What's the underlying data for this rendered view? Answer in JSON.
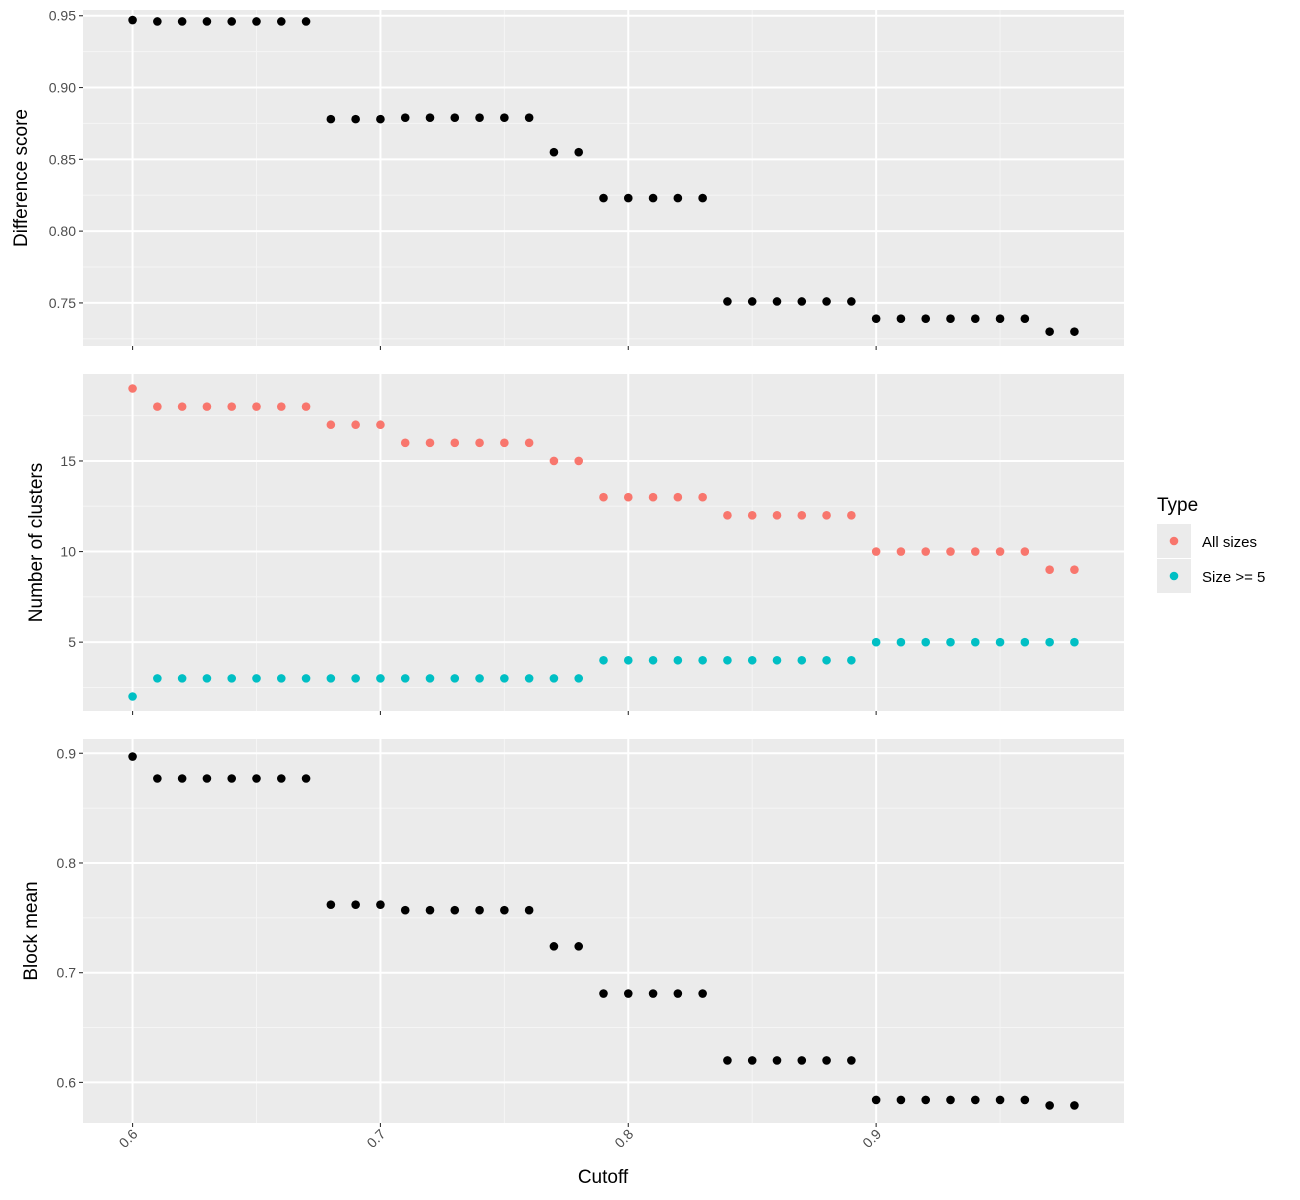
{
  "chart_data": [
    {
      "type": "scatter",
      "ylabel": "Difference score",
      "xlabel": "",
      "xlim": [
        0.58,
        1.0
      ],
      "ylim": [
        0.72,
        0.954
      ],
      "yticks": [
        0.75,
        0.8,
        0.85,
        0.9,
        0.95
      ],
      "ytick_labels": [
        "0.75",
        "0.80",
        "0.85",
        "0.90",
        "0.95"
      ],
      "grid": true,
      "series": [
        {
          "color": "#000000",
          "x": [
            0.6,
            0.61,
            0.62,
            0.63,
            0.64,
            0.65,
            0.66,
            0.67,
            0.68,
            0.69,
            0.7,
            0.71,
            0.72,
            0.73,
            0.74,
            0.75,
            0.76,
            0.77,
            0.78,
            0.79,
            0.8,
            0.81,
            0.82,
            0.83,
            0.84,
            0.85,
            0.86,
            0.87,
            0.88,
            0.89,
            0.9,
            0.91,
            0.92,
            0.93,
            0.94,
            0.95,
            0.96,
            0.97,
            0.98
          ],
          "y": [
            0.947,
            0.946,
            0.946,
            0.946,
            0.946,
            0.946,
            0.946,
            0.946,
            0.878,
            0.878,
            0.878,
            0.879,
            0.879,
            0.879,
            0.879,
            0.879,
            0.879,
            0.855,
            0.855,
            0.823,
            0.823,
            0.823,
            0.823,
            0.823,
            0.751,
            0.751,
            0.751,
            0.751,
            0.751,
            0.751,
            0.739,
            0.739,
            0.739,
            0.739,
            0.739,
            0.739,
            0.739,
            0.73,
            0.73
          ]
        }
      ]
    },
    {
      "type": "scatter",
      "ylabel": "Number of clusters",
      "xlabel": "",
      "xlim": [
        0.58,
        1.0
      ],
      "ylim": [
        1.2,
        19.8
      ],
      "yticks": [
        5,
        10,
        15
      ],
      "ytick_labels": [
        "5",
        "10",
        "15"
      ],
      "grid": true,
      "legend": {
        "title": "Type",
        "position": "right"
      },
      "series": [
        {
          "name": "All sizes",
          "color": "#F8766D",
          "x": [
            0.6,
            0.61,
            0.62,
            0.63,
            0.64,
            0.65,
            0.66,
            0.67,
            0.68,
            0.69,
            0.7,
            0.71,
            0.72,
            0.73,
            0.74,
            0.75,
            0.76,
            0.77,
            0.78,
            0.79,
            0.8,
            0.81,
            0.82,
            0.83,
            0.84,
            0.85,
            0.86,
            0.87,
            0.88,
            0.89,
            0.9,
            0.91,
            0.92,
            0.93,
            0.94,
            0.95,
            0.96,
            0.97,
            0.98
          ],
          "y": [
            19,
            18,
            18,
            18,
            18,
            18,
            18,
            18,
            17,
            17,
            17,
            16,
            16,
            16,
            16,
            16,
            16,
            15,
            15,
            13,
            13,
            13,
            13,
            13,
            12,
            12,
            12,
            12,
            12,
            12,
            10,
            10,
            10,
            10,
            10,
            10,
            10,
            9,
            9
          ]
        },
        {
          "name": "Size >= 5",
          "color": "#00BFC4",
          "x": [
            0.6,
            0.61,
            0.62,
            0.63,
            0.64,
            0.65,
            0.66,
            0.67,
            0.68,
            0.69,
            0.7,
            0.71,
            0.72,
            0.73,
            0.74,
            0.75,
            0.76,
            0.77,
            0.78,
            0.79,
            0.8,
            0.81,
            0.82,
            0.83,
            0.84,
            0.85,
            0.86,
            0.87,
            0.88,
            0.89,
            0.9,
            0.91,
            0.92,
            0.93,
            0.94,
            0.95,
            0.96,
            0.97,
            0.98
          ],
          "y": [
            2,
            3,
            3,
            3,
            3,
            3,
            3,
            3,
            3,
            3,
            3,
            3,
            3,
            3,
            3,
            3,
            3,
            3,
            3,
            4,
            4,
            4,
            4,
            4,
            4,
            4,
            4,
            4,
            4,
            4,
            5,
            5,
            5,
            5,
            5,
            5,
            5,
            5,
            5
          ]
        }
      ]
    },
    {
      "type": "scatter",
      "ylabel": "Block mean",
      "xlabel": "Cutoff",
      "xlim": [
        0.58,
        1.0
      ],
      "ylim": [
        0.563,
        0.913
      ],
      "yticks": [
        0.6,
        0.7,
        0.8,
        0.9
      ],
      "ytick_labels": [
        "0.6",
        "0.7",
        "0.8",
        "0.9"
      ],
      "xticks": [
        0.6,
        0.7,
        0.8,
        0.9
      ],
      "xtick_labels": [
        "0.6",
        "0.7",
        "0.8",
        "0.9"
      ],
      "grid": true,
      "series": [
        {
          "color": "#000000",
          "x": [
            0.6,
            0.61,
            0.62,
            0.63,
            0.64,
            0.65,
            0.66,
            0.67,
            0.68,
            0.69,
            0.7,
            0.71,
            0.72,
            0.73,
            0.74,
            0.75,
            0.76,
            0.77,
            0.78,
            0.79,
            0.8,
            0.81,
            0.82,
            0.83,
            0.84,
            0.85,
            0.86,
            0.87,
            0.88,
            0.89,
            0.9,
            0.91,
            0.92,
            0.93,
            0.94,
            0.95,
            0.96,
            0.97,
            0.98
          ],
          "y": [
            0.897,
            0.877,
            0.877,
            0.877,
            0.877,
            0.877,
            0.877,
            0.877,
            0.762,
            0.762,
            0.762,
            0.757,
            0.757,
            0.757,
            0.757,
            0.757,
            0.757,
            0.724,
            0.724,
            0.681,
            0.681,
            0.681,
            0.681,
            0.681,
            0.62,
            0.62,
            0.62,
            0.62,
            0.62,
            0.62,
            0.584,
            0.584,
            0.584,
            0.584,
            0.584,
            0.584,
            0.584,
            0.579,
            0.579
          ]
        }
      ]
    }
  ]
}
